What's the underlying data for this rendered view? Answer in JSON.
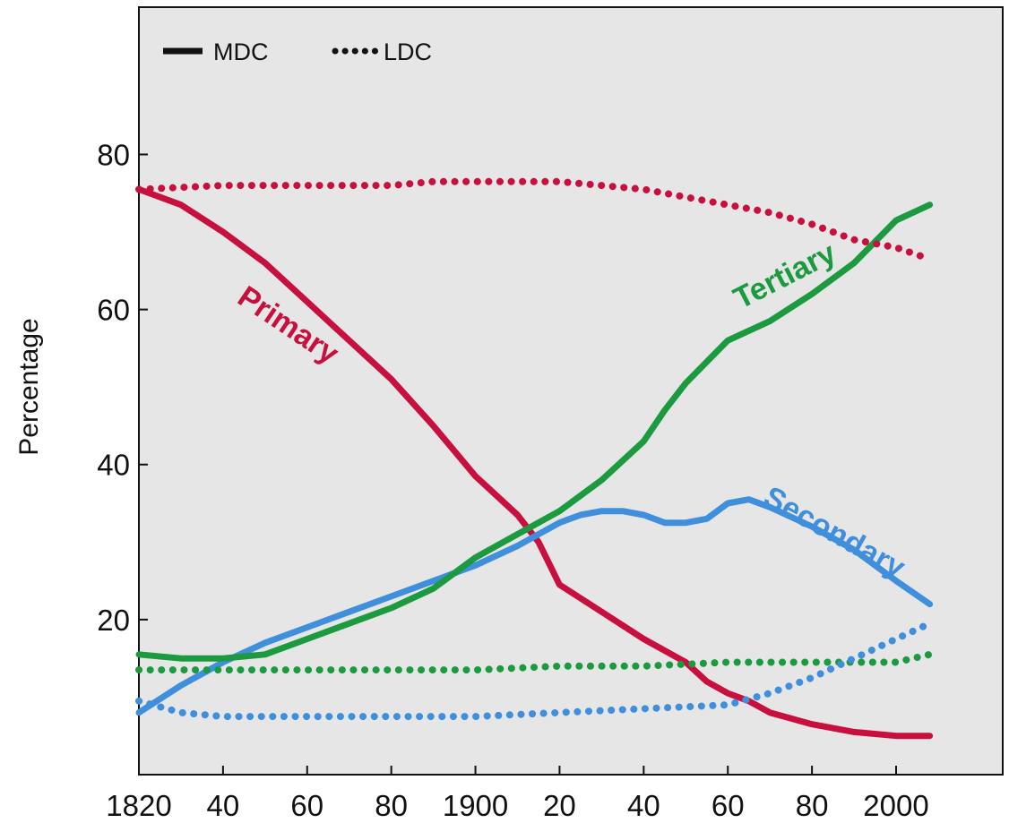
{
  "chart_data": {
    "type": "line",
    "ylabel": "Percentage",
    "xlabel": "",
    "x_tick_labels": [
      "1820",
      "40",
      "60",
      "80",
      "1900",
      "20",
      "40",
      "60",
      "80",
      "2000"
    ],
    "x_tick_values": [
      1820,
      1840,
      1860,
      1880,
      1900,
      1920,
      1940,
      1960,
      1980,
      2000
    ],
    "y_ticks": [
      20,
      40,
      60,
      80
    ],
    "xlim": [
      1820,
      2012
    ],
    "ylim": [
      0,
      99
    ],
    "grid": false,
    "legend": {
      "placement": "top-left",
      "entries": [
        {
          "style": "solid",
          "label": "MDC"
        },
        {
          "style": "dotted",
          "label": "LDC"
        }
      ]
    },
    "colors": {
      "primary": "#c8103e",
      "secondary": "#3f8fdc",
      "tertiary": "#1b9a3f",
      "background": "#e6e6e6"
    },
    "series": [
      {
        "name": "Primary",
        "group": "MDC",
        "style": "solid",
        "color": "#c8103e",
        "x": [
          1820,
          1830,
          1840,
          1850,
          1860,
          1870,
          1880,
          1890,
          1900,
          1910,
          1915,
          1920,
          1930,
          1940,
          1950,
          1955,
          1960,
          1965,
          1970,
          1980,
          1990,
          2000,
          2008
        ],
        "y": [
          75.5,
          73.5,
          70,
          66,
          61,
          56,
          51,
          45,
          38.5,
          33.5,
          30,
          24.5,
          21,
          17.5,
          14.5,
          12,
          10.5,
          9.5,
          8,
          6.5,
          5.5,
          5,
          5
        ]
      },
      {
        "name": "Secondary",
        "group": "MDC",
        "style": "solid",
        "color": "#3f8fdc",
        "x": [
          1820,
          1830,
          1840,
          1850,
          1860,
          1870,
          1880,
          1890,
          1900,
          1910,
          1915,
          1920,
          1925,
          1930,
          1935,
          1940,
          1945,
          1950,
          1955,
          1960,
          1965,
          1970,
          1980,
          1990,
          2000,
          2008
        ],
        "y": [
          8,
          11.5,
          14.5,
          17,
          19,
          21,
          23,
          25,
          27,
          29.5,
          31,
          32.5,
          33.5,
          34,
          34,
          33.5,
          32.5,
          32.5,
          33,
          35,
          35.5,
          34.5,
          32,
          29,
          25,
          22
        ]
      },
      {
        "name": "Tertiary",
        "group": "MDC",
        "style": "solid",
        "color": "#1b9a3f",
        "x": [
          1820,
          1830,
          1840,
          1850,
          1860,
          1870,
          1880,
          1890,
          1900,
          1910,
          1920,
          1930,
          1940,
          1945,
          1950,
          1960,
          1970,
          1980,
          1990,
          2000,
          2008
        ],
        "y": [
          15.5,
          15,
          15,
          15.5,
          17.5,
          19.5,
          21.5,
          24,
          28,
          31,
          34,
          38,
          43,
          47,
          50.5,
          56,
          58.5,
          62,
          66,
          71.5,
          73.5
        ]
      },
      {
        "name": "",
        "group": "LDC",
        "style": "dotted",
        "color": "#c8103e",
        "x": [
          1820,
          1840,
          1860,
          1880,
          1890,
          1900,
          1910,
          1920,
          1930,
          1940,
          1950,
          1960,
          1970,
          1980,
          1990,
          2000,
          2008
        ],
        "y": [
          75.5,
          76,
          76,
          76,
          76.5,
          76.5,
          76.5,
          76.5,
          76,
          75.5,
          74.5,
          73.5,
          72.5,
          71,
          69,
          68,
          66.5
        ]
      },
      {
        "name": "",
        "group": "LDC",
        "style": "dotted",
        "color": "#1b9a3f",
        "x": [
          1820,
          1840,
          1860,
          1880,
          1900,
          1920,
          1940,
          1960,
          1980,
          2000,
          2008
        ],
        "y": [
          13.5,
          13.5,
          13.5,
          13.5,
          13.5,
          14,
          14,
          14.5,
          14.5,
          14.5,
          15.5
        ]
      },
      {
        "name": "",
        "group": "LDC",
        "style": "dotted",
        "color": "#3f8fdc",
        "x": [
          1820,
          1830,
          1840,
          1860,
          1880,
          1900,
          1920,
          1940,
          1960,
          1970,
          1980,
          1990,
          2000,
          2008
        ],
        "y": [
          9.5,
          8,
          7.5,
          7.5,
          7.5,
          7.5,
          8,
          8.5,
          9,
          10.5,
          12.5,
          15,
          17.5,
          19.5
        ]
      }
    ],
    "annotations": [
      {
        "text": "Primary",
        "color": "#c8103e",
        "x": 1843,
        "y": 61,
        "angle": 34
      },
      {
        "text": "Tertiary",
        "color": "#1b9a3f",
        "x": 1963,
        "y": 60,
        "angle": -27
      },
      {
        "text": "Secondary",
        "color": "#3f8fdc",
        "x": 1968,
        "y": 35,
        "angle": 29
      }
    ]
  }
}
